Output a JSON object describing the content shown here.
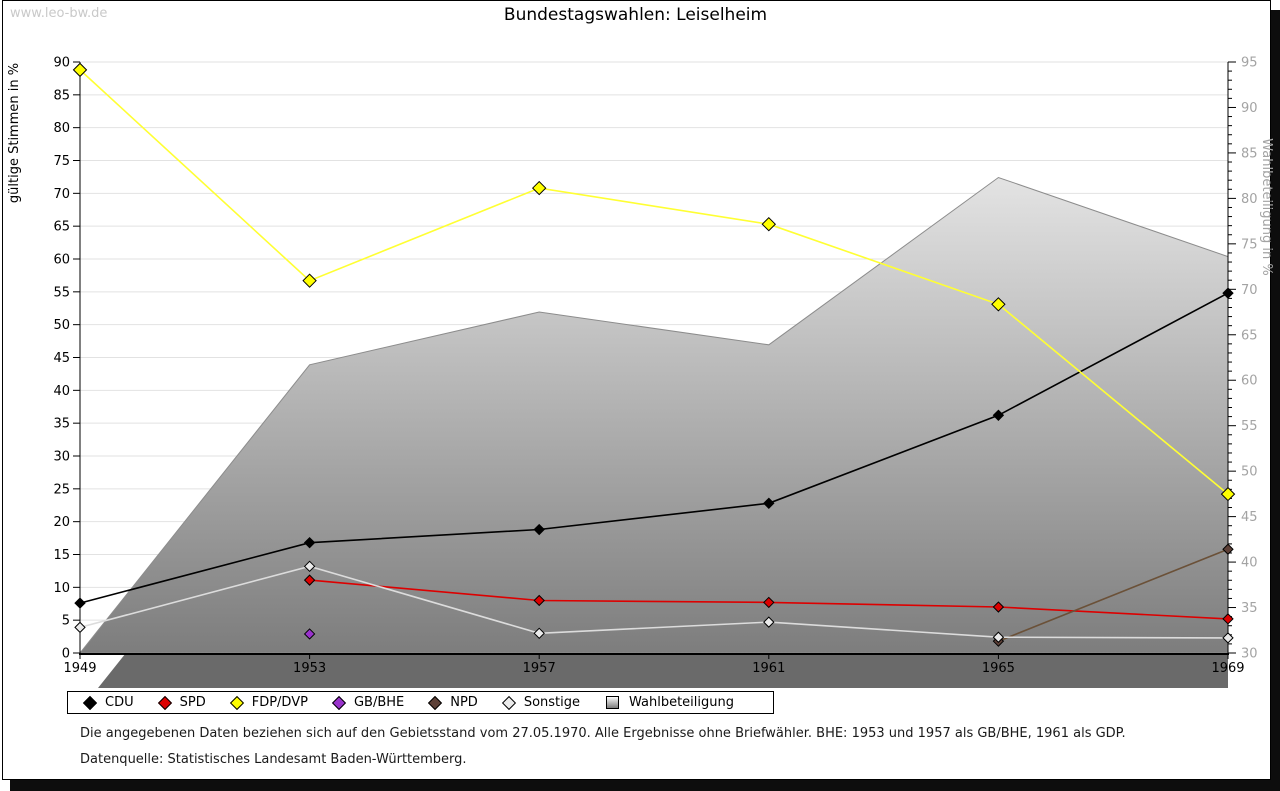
{
  "page": {
    "watermark": "www.leo-bw.de",
    "title": "Bundestagswahlen: Leiselheim",
    "footnote_line1": "Die angegebenen Daten beziehen sich auf den Gebietsstand vom 27.05.1970. Alle Ergebnisse ohne Briefwähler. BHE: 1953 und 1957 als GB/BHE, 1961 als GDP.",
    "footnote_line2": "Datenquelle: Statistisches Landesamt Baden-Württemberg."
  },
  "chart_data": {
    "type": "line",
    "title": "Bundestagswahlen: Leiselheim",
    "categories": [
      "1949",
      "1953",
      "1957",
      "1961",
      "1965",
      "1969"
    ],
    "left_axis": {
      "label": "gültige Stimmen in %",
      "min": 0,
      "max": 90,
      "step": 5
    },
    "right_axis": {
      "label": "Wahlbeteiligung in %",
      "min": 30,
      "max": 95,
      "step": 5,
      "minor_step": 1
    },
    "grid": "horizontal",
    "legend_position": "bottom",
    "series": [
      {
        "name": "CDU",
        "type": "line",
        "axis": "left",
        "color": "#000000",
        "marker_fill": "#000000",
        "marker_size": 5,
        "values": [
          7.6,
          16.8,
          18.8,
          22.8,
          36.2,
          54.8
        ]
      },
      {
        "name": "SPD",
        "type": "line",
        "axis": "left",
        "color": "#dd0000",
        "marker_fill": "#dd0000",
        "marker_size": 5,
        "values": [
          null,
          11.1,
          8.0,
          7.7,
          7.0,
          5.2
        ]
      },
      {
        "name": "FDP/DVP",
        "type": "line",
        "axis": "left",
        "color": "#ffff33",
        "marker_fill": "#ffff00",
        "marker_size": 6.5,
        "values": [
          88.8,
          56.7,
          70.8,
          65.3,
          53.1,
          24.2
        ]
      },
      {
        "name": "GB/BHE",
        "type": "line",
        "axis": "left",
        "color": "#9933cc",
        "marker_fill": "#9933cc",
        "marker_size": 5,
        "values": [
          null,
          2.9,
          null,
          null,
          null,
          null
        ]
      },
      {
        "name": "NPD",
        "type": "line",
        "axis": "left",
        "color": "#6b5138",
        "marker_fill": "#5d4037",
        "marker_size": 5,
        "values": [
          null,
          null,
          null,
          null,
          1.8,
          15.8
        ]
      },
      {
        "name": "Sonstige",
        "type": "line",
        "axis": "left",
        "color": "#dcdcdc",
        "marker_fill": "#ebebeb",
        "marker_size": 5,
        "values": [
          3.9,
          13.2,
          3.0,
          4.7,
          2.4,
          2.3
        ]
      },
      {
        "name": "Wahlbeteiligung",
        "type": "area",
        "axis": "right",
        "color": "#8c8c8c",
        "fill_top": "#fcfcfc",
        "fill_bottom": "#7d7d7d",
        "shadow_color": "#6a6a6a",
        "values": [
          30.0,
          61.7,
          67.5,
          63.9,
          82.3,
          73.6
        ]
      }
    ]
  }
}
